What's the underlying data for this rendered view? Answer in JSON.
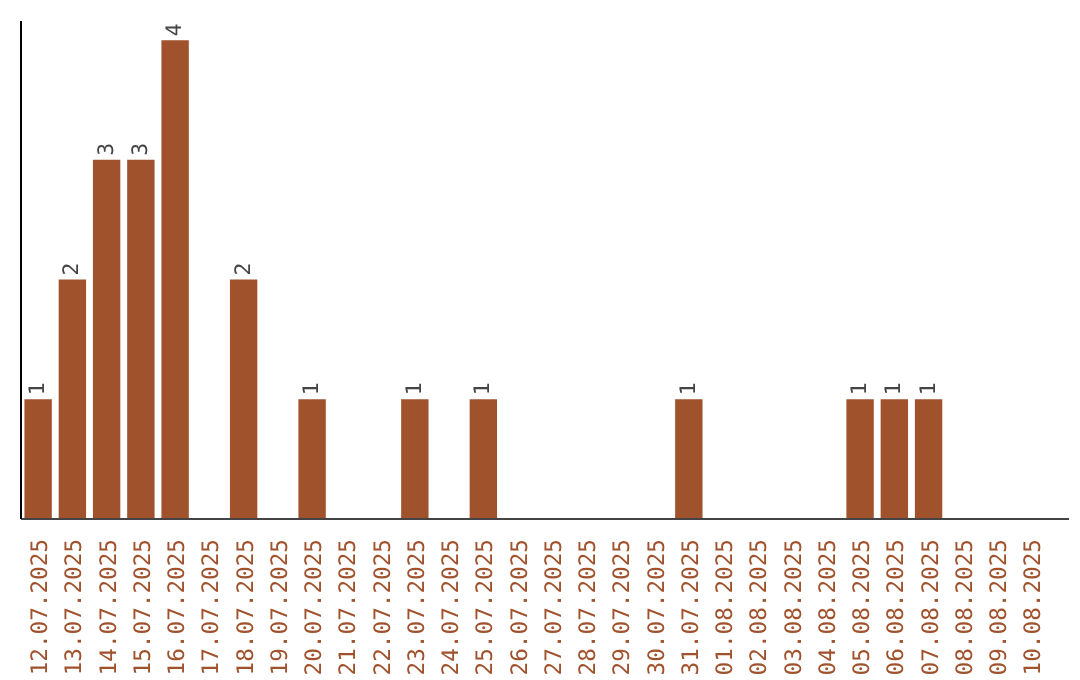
{
  "chart_data": {
    "type": "bar",
    "categories": [
      "12.07.2025",
      "13.07.2025",
      "14.07.2025",
      "15.07.2025",
      "16.07.2025",
      "17.07.2025",
      "18.07.2025",
      "19.07.2025",
      "20.07.2025",
      "21.07.2025",
      "22.07.2025",
      "23.07.2025",
      "24.07.2025",
      "25.07.2025",
      "26.07.2025",
      "27.07.2025",
      "28.07.2025",
      "29.07.2025",
      "30.07.2025",
      "31.07.2025",
      "01.08.2025",
      "02.08.2025",
      "03.08.2025",
      "04.08.2025",
      "05.08.2025",
      "06.08.2025",
      "07.08.2025",
      "08.08.2025",
      "09.08.2025",
      "10.08.2025"
    ],
    "values": [
      1,
      2,
      3,
      3,
      4,
      0,
      2,
      0,
      1,
      0,
      0,
      1,
      0,
      1,
      0,
      0,
      0,
      0,
      0,
      1,
      0,
      0,
      0,
      0,
      1,
      1,
      1,
      0,
      0,
      0
    ],
    "value_labels": [
      "1",
      "2",
      "3",
      "3",
      "4",
      null,
      "2",
      null,
      "1",
      null,
      null,
      "1",
      null,
      "1",
      null,
      null,
      null,
      null,
      null,
      "1",
      null,
      null,
      null,
      null,
      "1",
      "1",
      "1",
      null,
      null,
      null
    ],
    "color": "#a0522d",
    "tick_labels": "x",
    "grid": false
  }
}
